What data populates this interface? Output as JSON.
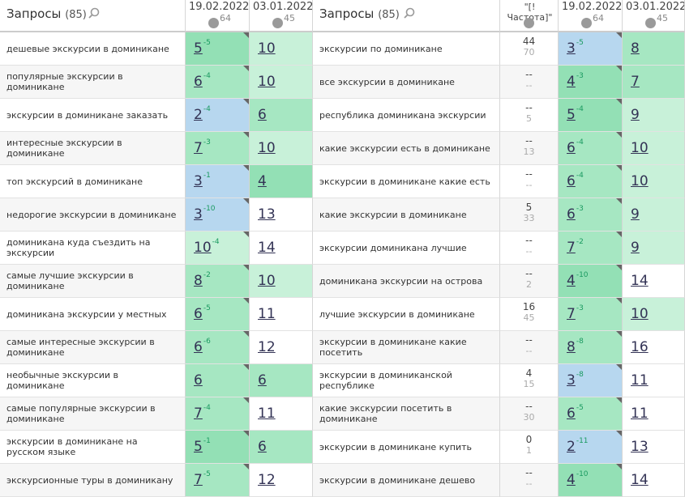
{
  "left": {
    "header": {
      "title": "Запросы",
      "count": "(85)",
      "col1": {
        "date": "19.02.2022",
        "count": "64"
      },
      "col2": {
        "date": "03.01.2022",
        "count": "45"
      }
    },
    "rows": [
      {
        "query": "дешевые экскурсии в доминикане",
        "pos1": "5",
        "delta": "-5",
        "pos2": "10"
      },
      {
        "query": "популярные экскурсии в доминикане",
        "pos1": "6",
        "delta": "-4",
        "pos2": "10"
      },
      {
        "query": "экскурсии в доминикане заказать",
        "pos1": "2",
        "delta": "-4",
        "pos2": "6"
      },
      {
        "query": "интересные экскурсии в доминикане",
        "pos1": "7",
        "delta": "-3",
        "pos2": "10"
      },
      {
        "query": "топ экскурсий в доминикане",
        "pos1": "3",
        "delta": "-1",
        "pos2": "4"
      },
      {
        "query": "недорогие экскурсии в доминикане",
        "pos1": "3",
        "delta": "-10",
        "pos2": "13"
      },
      {
        "query": "доминикана куда съездить на экскурсии",
        "pos1": "10",
        "delta": "-4",
        "pos2": "14"
      },
      {
        "query": "самые лучшие экскурсии в доминикане",
        "pos1": "8",
        "delta": "-2",
        "pos2": "10"
      },
      {
        "query": "доминикана экскурсии у местных",
        "pos1": "6",
        "delta": "-5",
        "pos2": "11"
      },
      {
        "query": "самые интересные экскурсии в доминикане",
        "pos1": "6",
        "delta": "-6",
        "pos2": "12"
      },
      {
        "query": "необычные экскурсии в доминикане",
        "pos1": "6",
        "pos2": "6"
      },
      {
        "query": "самые популярные экскурсии в доминикане",
        "pos1": "7",
        "delta": "-4",
        "pos2": "11"
      },
      {
        "query": "экскурсии в доминикане на русском языке",
        "pos1": "5",
        "delta": "-1",
        "pos2": "6"
      },
      {
        "query": "экскурсионные туры в доминикану",
        "pos1": "7",
        "delta": "-5",
        "pos2": "12"
      }
    ]
  },
  "right": {
    "header": {
      "title": "Запросы",
      "count": "(85)",
      "freq": "\"[!Частота]\"",
      "col1": {
        "date": "19.02.2022",
        "count": "64"
      },
      "col2": {
        "date": "03.01.2022",
        "count": "45"
      }
    },
    "rows": [
      {
        "query": "экскурсии по доминикане",
        "freq": "44",
        "freq_base": "70",
        "pos1": "3",
        "delta": "-5",
        "pos2": "8"
      },
      {
        "query": "все экскурсии в доминикане",
        "freq": "--",
        "freq_base": "--",
        "pos1": "4",
        "delta": "-3",
        "pos2": "7"
      },
      {
        "query": "республика доминикана экскурсии",
        "freq": "--",
        "freq_base": "5",
        "pos1": "5",
        "delta": "-4",
        "pos2": "9"
      },
      {
        "query": "какие экскурсии есть в доминикане",
        "freq": "--",
        "freq_base": "13",
        "pos1": "6",
        "delta": "-4",
        "pos2": "10"
      },
      {
        "query": "экскурсии в доминикане какие есть",
        "freq": "--",
        "freq_base": "--",
        "pos1": "6",
        "delta": "-4",
        "pos2": "10"
      },
      {
        "query": "какие экскурсии в доминикане",
        "freq": "5",
        "freq_base": "33",
        "pos1": "6",
        "delta": "-3",
        "pos2": "9"
      },
      {
        "query": "экскурсии доминикана лучшие",
        "freq": "--",
        "freq_base": "--",
        "pos1": "7",
        "delta": "-2",
        "pos2": "9"
      },
      {
        "query": "доминикана экскурсии на острова",
        "freq": "--",
        "freq_base": "2",
        "pos1": "4",
        "delta": "-10",
        "pos2": "14"
      },
      {
        "query": "лучшие экскурсии в доминикане",
        "freq": "16",
        "freq_base": "45",
        "pos1": "7",
        "delta": "-3",
        "pos2": "10"
      },
      {
        "query": "экскурсии в доминикане какие посетить",
        "freq": "--",
        "freq_base": "--",
        "pos1": "8",
        "delta": "-8",
        "pos2": "16"
      },
      {
        "query": "экскурсии в доминиканской республике",
        "freq": "4",
        "freq_base": "15",
        "pos1": "3",
        "delta": "-8",
        "pos2": "11"
      },
      {
        "query": "какие экскурсии посетить в доминикане",
        "freq": "--",
        "freq_base": "30",
        "pos1": "6",
        "delta": "-5",
        "pos2": "11"
      },
      {
        "query": "экскурсии в доминикане купить",
        "freq": "0",
        "freq_base": "1",
        "pos1": "2",
        "delta": "-11",
        "pos2": "13"
      },
      {
        "query": "экскурсии в доминикане дешево",
        "freq": "--",
        "freq_base": "--",
        "pos1": "4",
        "delta": "-10",
        "pos2": "14"
      }
    ]
  }
}
